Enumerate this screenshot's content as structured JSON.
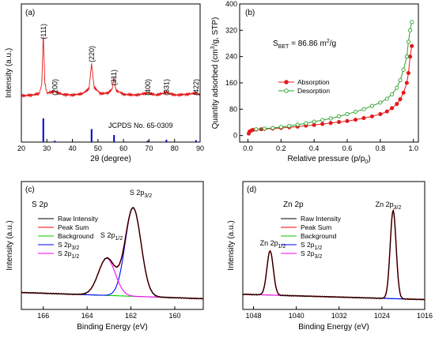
{
  "chart_data": [
    {
      "panel": "(a)",
      "type": "line",
      "xlabel": "2θ (degree)",
      "ylabel": "Intensity (a.u.)",
      "xlim": [
        20,
        90
      ],
      "xticks": [
        "20",
        "30",
        "40",
        "50",
        "60",
        "70",
        "80",
        "90"
      ],
      "peak_labels": [
        {
          "x": 28.6,
          "label": "(111)"
        },
        {
          "x": 33.1,
          "label": "(200)"
        },
        {
          "x": 47.5,
          "label": "(220)"
        },
        {
          "x": 56.3,
          "label": "(311)"
        },
        {
          "x": 69.5,
          "label": "(400)"
        },
        {
          "x": 76.8,
          "label": "(331)"
        },
        {
          "x": 88.4,
          "label": "(422)"
        }
      ],
      "reference": {
        "label": "JCPDS No. 65-0309",
        "x": [
          28.6,
          33.1,
          47.5,
          56.3,
          69.5,
          76.8,
          88.4
        ],
        "rel_intensity": [
          100,
          6,
          55,
          30,
          6,
          10,
          8
        ],
        "color": "#0000cc"
      },
      "series": [
        {
          "color": "#e41a1c",
          "x": [
            20,
            24,
            27,
            28.0,
            28.6,
            29.2,
            30,
            33.1,
            36,
            40,
            44,
            46.5,
            47.5,
            48.5,
            51,
            54,
            55.6,
            56.3,
            57,
            60,
            65,
            69.5,
            73,
            76.8,
            80,
            85,
            88.4,
            90
          ],
          "y": [
            12,
            13,
            15,
            28,
            100,
            30,
            16,
            18,
            14,
            13,
            15,
            22,
            58,
            24,
            15,
            16,
            22,
            40,
            20,
            14,
            13,
            16,
            13,
            17,
            13,
            14,
            16,
            13
          ]
        }
      ]
    },
    {
      "panel": "(b)",
      "type": "line",
      "xlabel": "Relative pressure (p/p0)",
      "ylabel": "Quantity adsorbed (cm3/g, STP)",
      "xlim": [
        -0.05,
        1.03
      ],
      "ylim": [
        -20,
        400
      ],
      "xticks": [
        "0.0",
        "0.2",
        "0.4",
        "0.6",
        "0.8",
        "1.0"
      ],
      "yticks": [
        "0",
        "80",
        "160",
        "240",
        "320",
        "400"
      ],
      "annotation": {
        "prefix": "S",
        "sub": "BET",
        "text": " = 86.86 m",
        "sup": "2",
        "suffix": "/g"
      },
      "series": [
        {
          "name": "Absorption",
          "color": "#e41a1c",
          "marker": "filled-circle",
          "x": [
            0.005,
            0.01,
            0.02,
            0.03,
            0.05,
            0.08,
            0.1,
            0.15,
            0.2,
            0.25,
            0.3,
            0.35,
            0.4,
            0.45,
            0.5,
            0.55,
            0.6,
            0.65,
            0.7,
            0.75,
            0.8,
            0.84,
            0.87,
            0.9,
            0.92,
            0.94,
            0.96,
            0.97,
            0.98,
            0.99
          ],
          "y": [
            6,
            12,
            15,
            17,
            18,
            19,
            20,
            21,
            23,
            25,
            27,
            30,
            32,
            35,
            38,
            41,
            44,
            48,
            53,
            58,
            65,
            73,
            83,
            96,
            110,
            130,
            160,
            190,
            240,
            272
          ]
        },
        {
          "name": "Desorption",
          "color": "#2ca02c",
          "marker": "open-circle",
          "x": [
            0.99,
            0.98,
            0.97,
            0.96,
            0.94,
            0.92,
            0.9,
            0.87,
            0.84,
            0.8,
            0.75,
            0.7,
            0.65,
            0.6,
            0.55,
            0.5,
            0.45,
            0.4,
            0.35,
            0.3,
            0.25,
            0.2,
            0.15,
            0.1,
            0.05
          ],
          "y": [
            345,
            320,
            285,
            240,
            200,
            168,
            145,
            125,
            112,
            100,
            90,
            80,
            72,
            65,
            58,
            52,
            47,
            42,
            37,
            33,
            29,
            26,
            23,
            21,
            19
          ]
        }
      ]
    },
    {
      "panel": "(c)",
      "type": "line",
      "title": "S 2p",
      "xlabel": "Binding Energy (eV)",
      "ylabel": "Intensity (a.u.)",
      "xlim": [
        167,
        158.7
      ],
      "xticks": [
        "166",
        "164",
        "162",
        "160"
      ],
      "peak_labels": [
        {
          "x": 161.9,
          "main": "S 2p",
          "sub": "3/2"
        },
        {
          "x": 163.1,
          "main": "S 2p",
          "sub": "1/2"
        }
      ],
      "peaks": [
        {
          "name": "S 2p3/2",
          "center": 161.9,
          "height": 1.0,
          "fwhm": 0.85
        },
        {
          "name": "S 2p1/2",
          "center": 163.1,
          "height": 0.42,
          "fwhm": 0.9
        }
      ],
      "background": {
        "start": 0.12,
        "end": 0.05
      },
      "series": [
        {
          "name": "Raw Intensity",
          "color": "#000000"
        },
        {
          "name": "Peak Sum",
          "color": "#ff0000"
        },
        {
          "name": "Background",
          "color": "#00cc00"
        },
        {
          "name": "S 2p",
          "sub": "3/2",
          "color": "#0000ff"
        },
        {
          "name": "S 2p",
          "sub": "1/2",
          "color": "#ff00ff"
        }
      ]
    },
    {
      "panel": "(d)",
      "type": "line",
      "title": "Zn 2p",
      "xlabel": "Binding Energy (eV)",
      "ylabel": "Intensity (a.u.)",
      "xlim": [
        1050,
        1016
      ],
      "xticks": [
        "1048",
        "1040",
        "1032",
        "1024",
        "1016"
      ],
      "peak_labels": [
        {
          "x": 1044.9,
          "main": "Zn 2p",
          "sub": "1/2"
        },
        {
          "x": 1021.9,
          "main": "Zn 2p",
          "sub": "3/2"
        }
      ],
      "peaks": [
        {
          "name": "Zn 2p1/2",
          "center": 1044.9,
          "height": 0.5,
          "fwhm": 1.4
        },
        {
          "name": "Zn 2p3/2",
          "center": 1021.9,
          "height": 1.0,
          "fwhm": 1.3
        }
      ],
      "background": {
        "start": 0.1,
        "end": 0.04
      },
      "series": [
        {
          "name": "Raw Intensity",
          "color": "#000000"
        },
        {
          "name": "Peak Sum",
          "color": "#ff0000"
        },
        {
          "name": "Background",
          "color": "#00cc00"
        },
        {
          "name": "S 2p",
          "sub": "1/2",
          "color": "#0000ff"
        },
        {
          "name": "S 2p",
          "sub": "3/2",
          "color": "#ff00ff"
        }
      ]
    }
  ]
}
